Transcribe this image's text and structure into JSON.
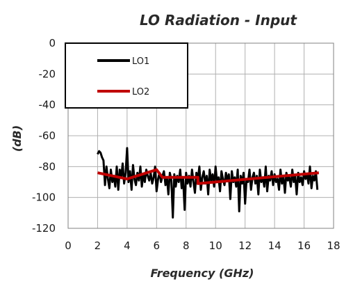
{
  "chart_data": {
    "type": "line",
    "title": "LO Radiation - Input",
    "xlabel": "Frequency (GHz)",
    "ylabel": "(dB)",
    "xlim": [
      0,
      18
    ],
    "ylim": [
      -120,
      0
    ],
    "xticks": [
      0,
      2,
      4,
      6,
      8,
      10,
      12,
      14,
      16,
      18
    ],
    "yticks": [
      0,
      -20,
      -40,
      -60,
      -80,
      -100,
      -120
    ],
    "grid": true,
    "legend_position": "top-left",
    "series": [
      {
        "name": "LO1",
        "color": "#000000",
        "x": [
          2.0,
          2.1,
          2.2,
          2.3,
          2.4,
          2.5,
          2.6,
          2.7,
          2.8,
          2.9,
          3.0,
          3.1,
          3.2,
          3.3,
          3.4,
          3.5,
          3.6,
          3.7,
          3.8,
          3.9,
          4.0,
          4.1,
          4.2,
          4.3,
          4.4,
          4.5,
          4.6,
          4.7,
          4.8,
          4.9,
          5.0,
          5.1,
          5.2,
          5.3,
          5.4,
          5.5,
          5.6,
          5.7,
          5.8,
          5.9,
          6.0,
          6.1,
          6.2,
          6.3,
          6.4,
          6.5,
          6.6,
          6.7,
          6.8,
          6.9,
          7.0,
          7.1,
          7.2,
          7.3,
          7.4,
          7.5,
          7.6,
          7.7,
          7.8,
          7.9,
          8.0,
          8.1,
          8.2,
          8.3,
          8.4,
          8.5,
          8.6,
          8.7,
          8.8,
          8.9,
          9.0,
          9.1,
          9.2,
          9.3,
          9.4,
          9.5,
          9.6,
          9.7,
          9.8,
          9.9,
          10.0,
          10.1,
          10.2,
          10.3,
          10.4,
          10.5,
          10.6,
          10.7,
          10.8,
          10.9,
          11.0,
          11.1,
          11.2,
          11.3,
          11.4,
          11.5,
          11.6,
          11.7,
          11.8,
          11.9,
          12.0,
          12.1,
          12.2,
          12.3,
          12.4,
          12.5,
          12.6,
          12.7,
          12.8,
          12.9,
          13.0,
          13.1,
          13.2,
          13.3,
          13.4,
          13.5,
          13.6,
          13.7,
          13.8,
          13.9,
          14.0,
          14.1,
          14.2,
          14.3,
          14.4,
          14.5,
          14.6,
          14.7,
          14.8,
          14.9,
          15.0,
          15.1,
          15.2,
          15.3,
          15.4,
          15.5,
          15.6,
          15.7,
          15.8,
          15.9,
          16.0,
          16.1,
          16.2,
          16.3,
          16.4,
          16.5,
          16.6,
          16.7,
          16.8,
          16.9
        ],
        "y": [
          -72,
          -70,
          -71,
          -74,
          -76,
          -92,
          -80,
          -88,
          -94,
          -82,
          -90,
          -86,
          -93,
          -80,
          -95,
          -82,
          -87,
          -78,
          -91,
          -84,
          -68,
          -90,
          -83,
          -95,
          -79,
          -88,
          -92,
          -84,
          -89,
          -80,
          -93,
          -85,
          -90,
          -82,
          -86,
          -89,
          -84,
          -91,
          -87,
          -80,
          -96,
          -88,
          -84,
          -90,
          -86,
          -83,
          -92,
          -87,
          -98,
          -84,
          -89,
          -113,
          -85,
          -93,
          -86,
          -90,
          -82,
          -94,
          -88,
          -108,
          -84,
          -91,
          -86,
          -93,
          -82,
          -90,
          -97,
          -84,
          -88,
          -80,
          -95,
          -87,
          -83,
          -91,
          -86,
          -98,
          -82,
          -89,
          -85,
          -93,
          -80,
          -90,
          -87,
          -96,
          -83,
          -88,
          -92,
          -84,
          -89,
          -85,
          -101,
          -83,
          -90,
          -87,
          -93,
          -82,
          -109,
          -86,
          -91,
          -84,
          -104,
          -88,
          -90,
          -82,
          -95,
          -87,
          -84,
          -91,
          -86,
          -98,
          -82,
          -90,
          -87,
          -93,
          -80,
          -96,
          -86,
          -89,
          -83,
          -92,
          -85,
          -90,
          -88,
          -95,
          -82,
          -91,
          -86,
          -97,
          -84,
          -89,
          -87,
          -93,
          -82,
          -90,
          -86,
          -98,
          -84,
          -90,
          -87,
          -92,
          -83,
          -88,
          -85,
          -91,
          -80,
          -94,
          -86,
          -89,
          -83,
          -95
        ]
      },
      {
        "name": "LO2",
        "color": "#c00000",
        "x": [
          2.0,
          4.0,
          6.0,
          6.4,
          8.8,
          8.8,
          17.0
        ],
        "y": [
          -84,
          -88,
          -82,
          -87,
          -87,
          -91,
          -84
        ]
      }
    ]
  }
}
